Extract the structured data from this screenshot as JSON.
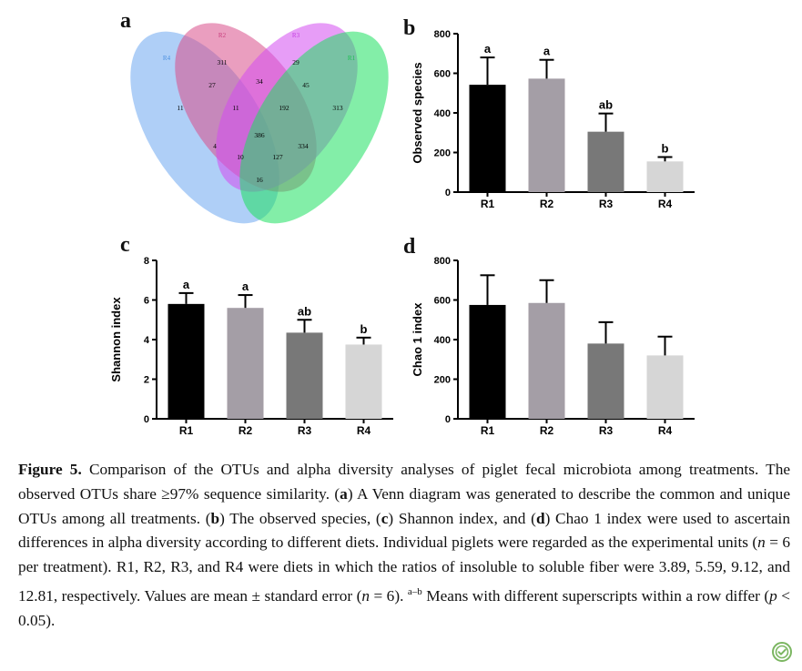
{
  "panels": {
    "a": "a",
    "b": "b",
    "c": "c",
    "d": "d"
  },
  "venn": {
    "sets": [
      {
        "name": "R4",
        "color": "#6ea7f0"
      },
      {
        "name": "R2",
        "color": "#d94f8a"
      },
      {
        "name": "R3",
        "color": "#d44df0"
      },
      {
        "name": "R1",
        "color": "#1ee060"
      }
    ],
    "label_colors": {
      "R4": "#4a8fe0",
      "R2": "#c83c7c",
      "R3": "#c43ee0",
      "R1": "#1cc050"
    },
    "counts": {
      "R4_only": "11",
      "R2_only": "311",
      "R3_only": "29",
      "R1_only": "313",
      "R4_R2": "27",
      "R2_R3": "34",
      "R3_R1": "45",
      "R4_R2_R3": "11",
      "R2_R3_R1": "192",
      "all": "386",
      "R4_R3": "4",
      "R2_R1": "334",
      "R4_R3_R1": "10",
      "R4_R2_R1": "127",
      "R4_R1": "16"
    }
  },
  "chart_data": [
    {
      "panel": "b",
      "type": "bar",
      "categories": [
        "R1",
        "R2",
        "R3",
        "R4"
      ],
      "values": [
        542,
        573,
        305,
        155
      ],
      "errors": [
        138,
        95,
        92,
        22
      ],
      "significance": [
        "a",
        "a",
        "ab",
        "b"
      ],
      "colors": [
        "#000000",
        "#a49ea6",
        "#787878",
        "#d6d6d6"
      ],
      "xlabel": "",
      "ylabel": "Observed species",
      "ylim": [
        0,
        800
      ],
      "yticks": [
        0,
        200,
        400,
        600,
        800
      ]
    },
    {
      "panel": "c",
      "type": "bar",
      "categories": [
        "R1",
        "R2",
        "R3",
        "R4"
      ],
      "values": [
        5.8,
        5.6,
        4.35,
        3.75
      ],
      "errors": [
        0.55,
        0.65,
        0.65,
        0.35
      ],
      "significance": [
        "a",
        "a",
        "ab",
        "b"
      ],
      "colors": [
        "#000000",
        "#a49ea6",
        "#787878",
        "#d6d6d6"
      ],
      "xlabel": "",
      "ylabel": "Shannon index",
      "ylim": [
        0,
        8
      ],
      "yticks": [
        0,
        2,
        4,
        6,
        8
      ]
    },
    {
      "panel": "d",
      "type": "bar",
      "categories": [
        "R1",
        "R2",
        "R3",
        "R4"
      ],
      "values": [
        575,
        585,
        380,
        320
      ],
      "errors": [
        150,
        115,
        108,
        95
      ],
      "significance": [
        "",
        "",
        "",
        ""
      ],
      "colors": [
        "#000000",
        "#a49ea6",
        "#787878",
        "#d6d6d6"
      ],
      "xlabel": "",
      "ylabel": "Chao 1 index",
      "ylim": [
        0,
        800
      ],
      "yticks": [
        0,
        200,
        400,
        600,
        800
      ]
    }
  ],
  "caption": {
    "label": "Figure 5.",
    "s1": " Comparison of the OTUs and alpha diversity analyses of piglet fecal microbiota among treatments. The observed OTUs share ≥97% sequence similarity. (",
    "a": "a",
    "s2": ") A Venn diagram was generated to describe the common and unique OTUs among all treatments. (",
    "b": "b",
    "s3": ") The observed species, (",
    "c": "c",
    "s4": ") Shannon index, and (",
    "d": "d",
    "s5": ") Chao 1 index were used to ascertain differences in alpha diversity according to different diets. Individual piglets were regarded as the experimental units (",
    "n1": "n",
    "s6": " = 6 per treatment). R1, R2, R3, and R4 were diets in which the ratios of insoluble to soluble fiber were 3.89, 5.59, 9.12, and 12.81, respectively. Values are mean ± standard error (",
    "n2": "n",
    "s7": " = 6). ",
    "sup": "a–b",
    "s8": " Means with different superscripts within a row differ (",
    "p": "p",
    "s9": " < 0.05)."
  }
}
